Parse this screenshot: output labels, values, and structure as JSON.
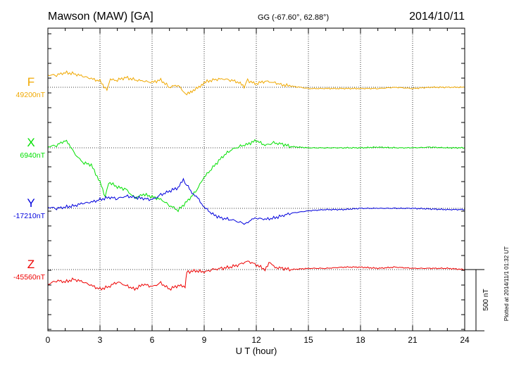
{
  "header": {
    "station": "Mawson (MAW)  [GA]",
    "coords": "GG (-67.60°,  62.88°)",
    "date": "2014/10/11"
  },
  "footer": {
    "plotted": "Plotted at 2014/11/1 01:32 UT"
  },
  "chart_data": {
    "type": "line",
    "xlabel": "U T (hour)",
    "xlim": [
      0,
      24
    ],
    "xticks": [
      "0",
      "3",
      "6",
      "9",
      "12",
      "15",
      "18",
      "21",
      "24"
    ],
    "grid": true,
    "scale_bar": "500 nT",
    "scale_bar_nT": 500,
    "colors": {
      "F": "#f0a800",
      "X": "#00e000",
      "Y": "#0000dd",
      "Z": "#ee0000"
    },
    "series": [
      {
        "name": "F",
        "baseline_label": "49200nT",
        "baseline_nT": 49200,
        "x": [
          0,
          0.5,
          1,
          1.5,
          2,
          2.5,
          3,
          3.4,
          3.6,
          4,
          4.5,
          5,
          5.5,
          6,
          6.5,
          7,
          7.5,
          7.8,
          8,
          8.3,
          8.7,
          9,
          9.5,
          10,
          10.5,
          11,
          11.3,
          11.5,
          11.7,
          12,
          12.5,
          13,
          13.5,
          14,
          14.5,
          15,
          16,
          17,
          18,
          19,
          20,
          21,
          22,
          23,
          24
        ],
        "values": [
          49300,
          49300,
          49320,
          49310,
          49290,
          49270,
          49250,
          49180,
          49260,
          49260,
          49280,
          49260,
          49250,
          49240,
          49260,
          49200,
          49220,
          49160,
          49140,
          49170,
          49200,
          49240,
          49260,
          49270,
          49260,
          49240,
          49200,
          49260,
          49240,
          49230,
          49250,
          49240,
          49220,
          49210,
          49200,
          49190,
          49190,
          49190,
          49190,
          49190,
          49200,
          49190,
          49200,
          49200,
          49200
        ]
      },
      {
        "name": "X",
        "baseline_label": "6940nT",
        "baseline_nT": 6940,
        "x": [
          0,
          0.5,
          1,
          1.3,
          1.5,
          2,
          2.5,
          3,
          3.3,
          3.5,
          4,
          4.5,
          5,
          5.5,
          6,
          6.5,
          7,
          7.5,
          8,
          8.5,
          9,
          9.5,
          10,
          10.5,
          11,
          11.5,
          12,
          12.5,
          13,
          13.5,
          14,
          15,
          16,
          17,
          18,
          19,
          20,
          21,
          22,
          23,
          24
        ],
        "values": [
          6950,
          6960,
          7000,
          6950,
          6900,
          6820,
          6800,
          6660,
          6540,
          6660,
          6620,
          6600,
          6530,
          6560,
          6540,
          6520,
          6470,
          6430,
          6500,
          6580,
          6700,
          6780,
          6860,
          6920,
          6950,
          6970,
          7000,
          6960,
          6980,
          6970,
          6950,
          6940,
          6940,
          6940,
          6940,
          6945,
          6940,
          6940,
          6945,
          6940,
          6940
        ]
      },
      {
        "name": "Y",
        "baseline_label": "-17210nT",
        "baseline_nT": -17210,
        "x": [
          0,
          0.5,
          1,
          1.5,
          2,
          2.5,
          3,
          3.5,
          4,
          4.5,
          5,
          5.5,
          6,
          6.5,
          7,
          7.5,
          7.8,
          8,
          8.3,
          8.7,
          9,
          9.5,
          10,
          10.5,
          11,
          11.3,
          11.6,
          12,
          12.5,
          13,
          13.5,
          14,
          15,
          16,
          17,
          18,
          19,
          20,
          21,
          22,
          23,
          24
        ],
        "values": [
          -17200,
          -17210,
          -17200,
          -17190,
          -17170,
          -17160,
          -17140,
          -17120,
          -17130,
          -17110,
          -17120,
          -17130,
          -17140,
          -17100,
          -17070,
          -17040,
          -16980,
          -17020,
          -17080,
          -17140,
          -17200,
          -17260,
          -17290,
          -17300,
          -17320,
          -17340,
          -17310,
          -17290,
          -17300,
          -17290,
          -17270,
          -17250,
          -17230,
          -17220,
          -17220,
          -17210,
          -17210,
          -17210,
          -17210,
          -17215,
          -17220,
          -17220
        ]
      },
      {
        "name": "Z",
        "baseline_label": "-45560nT",
        "baseline_nT": -45560,
        "x": [
          0,
          0.5,
          1,
          1.5,
          2,
          2.5,
          3,
          3.5,
          4,
          4.5,
          5,
          5.5,
          6,
          6.5,
          7,
          7.5,
          7.9,
          8,
          8.5,
          9,
          9.5,
          10,
          10.5,
          11,
          11.5,
          12,
          12.5,
          12.8,
          13,
          13.5,
          14,
          15,
          16,
          17,
          18,
          19,
          20,
          21,
          22,
          23,
          24
        ],
        "values": [
          -45680,
          -45650,
          -45660,
          -45640,
          -45660,
          -45690,
          -45720,
          -45700,
          -45660,
          -45690,
          -45720,
          -45680,
          -45700,
          -45670,
          -45720,
          -45690,
          -45700,
          -45580,
          -45570,
          -45580,
          -45560,
          -45550,
          -45540,
          -45520,
          -45490,
          -45520,
          -45560,
          -45500,
          -45540,
          -45550,
          -45560,
          -45550,
          -45550,
          -45540,
          -45540,
          -45550,
          -45540,
          -45550,
          -45550,
          -45550,
          -45560
        ]
      }
    ]
  }
}
